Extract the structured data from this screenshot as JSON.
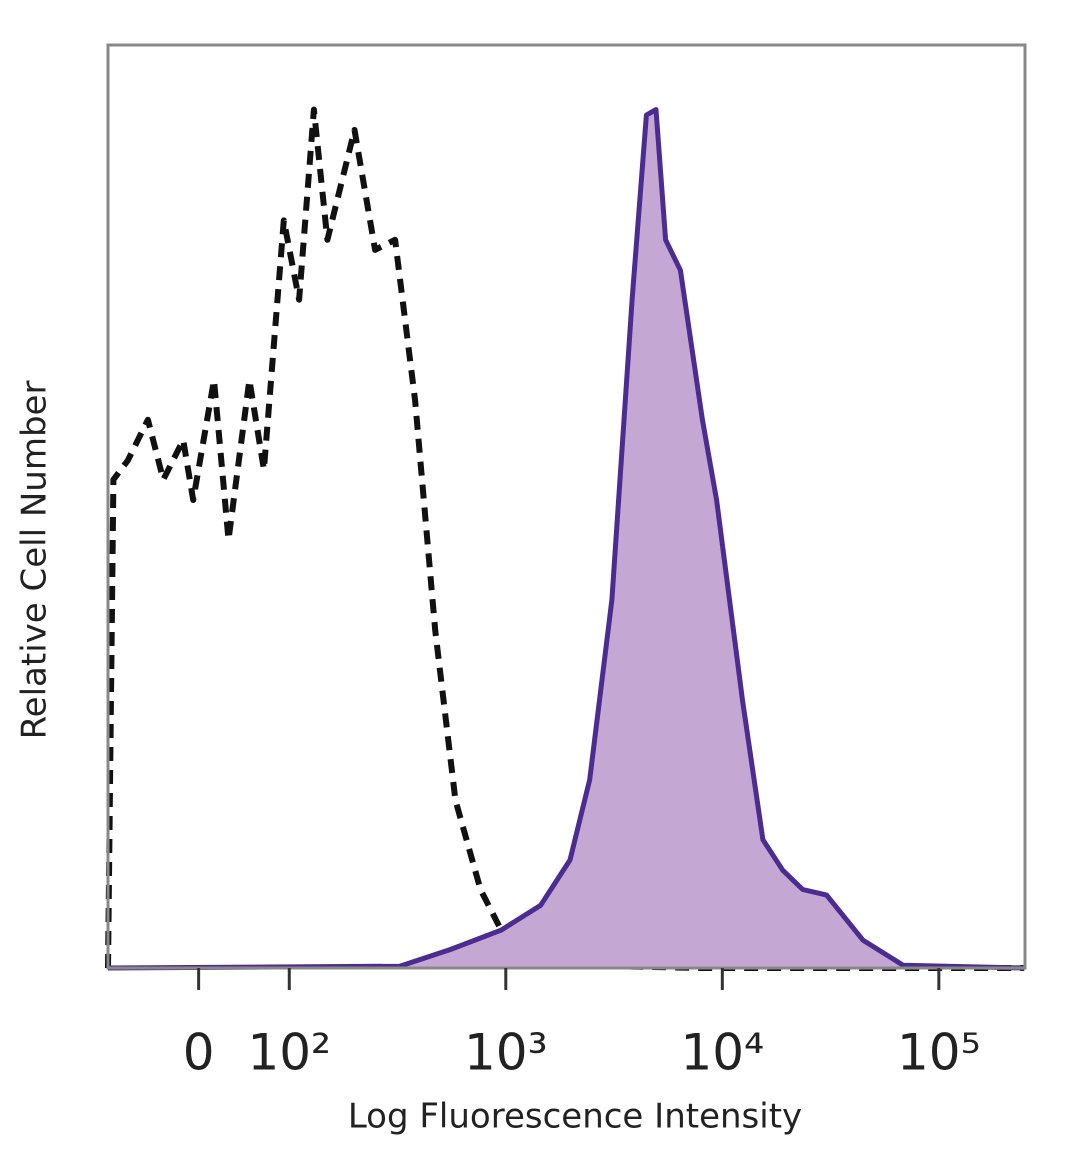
{
  "chart_data": {
    "type": "histogram-overlay",
    "x_label": "Log Fluorescence Intensity",
    "y_label": "Relative Cell Number",
    "xscale": "biexponential",
    "xlim": [
      -100,
      250000
    ],
    "ylim": [
      0,
      100
    ],
    "xticks": [
      0,
      {
        "value": 100,
        "label": "10²"
      },
      {
        "value": 1000,
        "label": "10³"
      },
      {
        "value": 10000,
        "label": "10⁴"
      },
      {
        "value": 100000,
        "label": "10⁵"
      }
    ],
    "series": [
      {
        "color": "#111111",
        "dashed": true,
        "filled": false,
        "x": [
          -100,
          -94,
          -78,
          -56,
          -39,
          -17,
          -6,
          17,
          33,
          56,
          72,
          94,
          111,
          130,
          150,
          200,
          249,
          308,
          381,
          472,
          585,
          764,
          1057,
          1800,
          8000,
          248000
        ],
        "values": [
          0,
          52.9,
          55,
          59.4,
          52.9,
          57.2,
          50.7,
          63.7,
          46.4,
          63.7,
          54,
          81,
          72.4,
          93,
          78.9,
          90.8,
          77.8,
          78.9,
          61.5,
          36.6,
          18.2,
          8.5,
          2,
          0.3,
          0,
          0
        ]
      },
      {
        "color": "#4b2c91",
        "fill": "#c4a8d3",
        "dashed": false,
        "filled": true,
        "x": [
          -100,
          324,
          555,
          950,
          1450,
          1980,
          2440,
          3090,
          3830,
          4460,
          4940,
          5470,
          6400,
          8090,
          9410,
          12400,
          15400,
          19000,
          23500,
          30300,
          44700,
          68400,
          248000
        ],
        "values": [
          0,
          0.2,
          2,
          4.1,
          6.8,
          11.7,
          20.4,
          39.9,
          72.4,
          92.4,
          93,
          78.9,
          75.6,
          59.4,
          50.7,
          29,
          13.9,
          10.6,
          8.5,
          7.9,
          3,
          0.3,
          0
        ]
      }
    ]
  }
}
